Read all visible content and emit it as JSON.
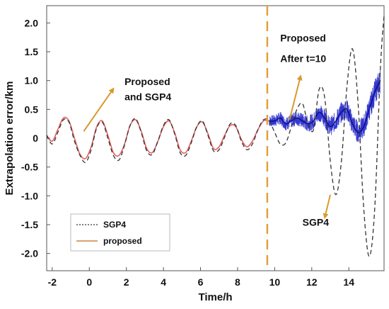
{
  "chart_data": {
    "type": "line",
    "xlabel": "Time/h",
    "ylabel": "Extrapolation error/km",
    "xlim": [
      -2.3,
      15.9
    ],
    "ylim": [
      -2.3,
      2.3
    ],
    "x_ticks": [
      -2,
      0,
      2,
      4,
      6,
      8,
      10,
      12,
      14
    ],
    "x_tick_labels": [
      "-2",
      "0",
      "2",
      "4",
      "6",
      "8",
      "10",
      "12",
      "14"
    ],
    "y_ticks": [
      2.0,
      1.5,
      1.0,
      0.5,
      0,
      -0.5,
      -1.0,
      -1.5,
      -2.0
    ],
    "y_tick_labels": [
      "2.0",
      "1.5",
      "1.0",
      "0.5",
      "0",
      "-0.5",
      "-1.0",
      "-1.5",
      "-2.0"
    ],
    "grid": false,
    "legend_position": "bottom-left",
    "vline": {
      "x": 9.6,
      "color": "#e0a040",
      "style": "dashed"
    },
    "series": [
      {
        "name": "SGP4",
        "color": "#333333",
        "style": "dashed",
        "x": [
          -2.3,
          -2.0,
          -1.7,
          -1.4,
          -1.1,
          -0.8,
          -0.5,
          -0.2,
          0.1,
          0.4,
          0.7,
          1.0,
          1.3,
          1.6,
          1.9,
          2.2,
          2.5,
          2.8,
          3.1,
          3.4,
          3.7,
          4.0,
          4.3,
          4.6,
          4.9,
          5.2,
          5.5,
          5.8,
          6.1,
          6.4,
          6.7,
          7.0,
          7.3,
          7.6,
          7.9,
          8.2,
          8.5,
          8.8,
          9.1,
          9.4,
          9.7,
          10.0,
          10.3,
          10.6,
          10.9,
          11.2,
          11.5,
          11.8,
          12.1,
          12.4,
          12.7,
          13.0,
          13.3,
          13.6,
          13.9,
          14.2,
          14.5,
          14.8,
          15.1,
          15.4,
          15.7,
          15.9
        ],
        "y": [
          0.05,
          -0.1,
          0.1,
          0.32,
          0.28,
          -0.05,
          -0.3,
          -0.42,
          -0.2,
          0.18,
          0.28,
          0.0,
          -0.3,
          -0.38,
          -0.12,
          0.22,
          0.34,
          0.1,
          -0.22,
          -0.28,
          -0.05,
          0.22,
          0.32,
          0.08,
          -0.25,
          -0.3,
          -0.08,
          0.2,
          0.3,
          0.05,
          -0.22,
          -0.2,
          0.02,
          0.25,
          0.22,
          -0.05,
          -0.2,
          -0.1,
          0.15,
          0.32,
          0.3,
          0.1,
          -0.1,
          -0.08,
          0.2,
          0.5,
          0.6,
          0.25,
          0.15,
          0.85,
          0.7,
          -0.4,
          -0.98,
          -0.4,
          0.9,
          1.55,
          0.6,
          -1.2,
          -2.05,
          -1.2,
          1.2,
          2.12
        ]
      },
      {
        "name": "proposed",
        "color": "#e06060",
        "style": "solid",
        "x": [
          -2.3,
          -2.0,
          -1.7,
          -1.4,
          -1.1,
          -0.8,
          -0.5,
          -0.2,
          0.1,
          0.4,
          0.7,
          1.0,
          1.3,
          1.6,
          1.9,
          2.2,
          2.5,
          2.8,
          3.1,
          3.4,
          3.7,
          4.0,
          4.3,
          4.6,
          4.9,
          5.2,
          5.5,
          5.8,
          6.1,
          6.4,
          6.7,
          7.0,
          7.3,
          7.6,
          7.9,
          8.2,
          8.5,
          8.8,
          9.1,
          9.4,
          9.7
        ],
        "y": [
          0.05,
          -0.05,
          0.15,
          0.35,
          0.3,
          0.0,
          -0.28,
          -0.35,
          -0.15,
          0.2,
          0.3,
          0.05,
          -0.25,
          -0.3,
          -0.1,
          0.22,
          0.32,
          0.12,
          -0.18,
          -0.25,
          -0.05,
          0.2,
          0.3,
          0.1,
          -0.2,
          -0.25,
          -0.05,
          0.2,
          0.28,
          0.08,
          -0.18,
          -0.15,
          0.05,
          0.22,
          0.2,
          -0.02,
          -0.15,
          -0.05,
          0.15,
          0.3,
          0.3
        ]
      },
      {
        "name": "Proposed After t=10",
        "color": "#1f22c8",
        "style": "solid",
        "x": [
          9.7,
          10.0,
          10.3,
          10.6,
          10.9,
          11.2,
          11.5,
          11.8,
          12.1,
          12.4,
          12.7,
          13.0,
          13.3,
          13.6,
          13.9,
          14.2,
          14.5,
          14.8,
          15.1,
          15.4,
          15.7
        ],
        "y": [
          0.3,
          0.3,
          0.35,
          0.25,
          0.3,
          0.35,
          0.3,
          0.25,
          0.3,
          0.45,
          0.35,
          0.2,
          0.3,
          0.45,
          0.5,
          0.25,
          0.1,
          0.2,
          0.5,
          0.8,
          1.0
        ]
      }
    ],
    "annotations": [
      {
        "text": "Proposed",
        "x": 1.9,
        "y": 0.92
      },
      {
        "text": "and SGP4",
        "x": 1.9,
        "y": 0.66
      },
      {
        "text": "Proposed",
        "x": 10.3,
        "y": 1.68
      },
      {
        "text": "After t=10",
        "x": 10.3,
        "y": 1.32
      },
      {
        "text": "SGP4",
        "x": 11.5,
        "y": -1.52
      }
    ],
    "arrows": [
      {
        "from": [
          -0.3,
          0.12
        ],
        "to": [
          1.3,
          0.86
        ]
      },
      {
        "from": [
          10.8,
          0.32
        ],
        "to": [
          11.4,
          1.08
        ]
      },
      {
        "from": [
          13.0,
          -0.98
        ],
        "to": [
          12.7,
          -1.38
        ]
      }
    ],
    "legend": [
      "SGP4",
      "proposed"
    ]
  }
}
